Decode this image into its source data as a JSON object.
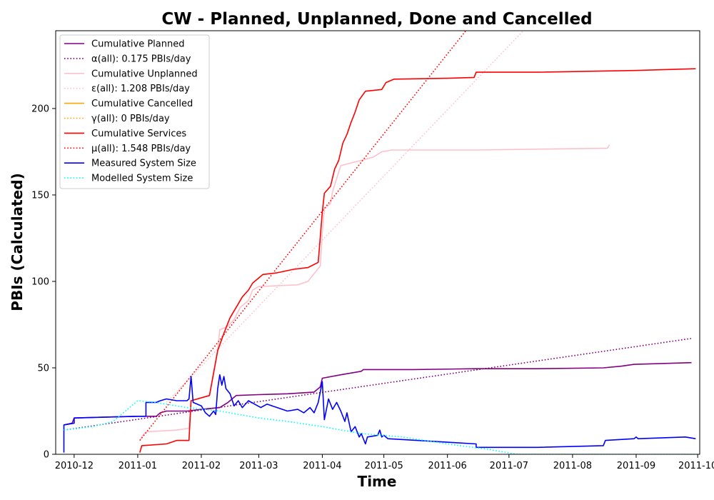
{
  "chart_data": {
    "type": "line",
    "title": "CW - Planned, Unplanned, Done  and Cancelled",
    "xlabel": "Time",
    "ylabel": "PBIs (Calculated)",
    "xlim": [
      "2010-11-22",
      "2011-10-02"
    ],
    "ylim": [
      0,
      245
    ],
    "x_ticks": [
      "2010-12",
      "2011-01",
      "2011-02",
      "2011-03",
      "2011-04",
      "2011-05",
      "2011-06",
      "2011-07",
      "2011-08",
      "2011-09",
      "2011-10"
    ],
    "y_ticks": [
      0,
      50,
      100,
      150,
      200
    ],
    "grid": false,
    "legend_position": "top-left",
    "series": [
      {
        "name": "Cumulative Planned",
        "color": "#800080",
        "style": "solid",
        "points": [
          [
            "2010-11-26",
            17
          ],
          [
            "2010-11-30",
            18
          ],
          [
            "2010-12-01",
            21
          ],
          [
            "2010-12-15",
            21.5
          ],
          [
            "2011-01-01",
            22
          ],
          [
            "2011-01-10",
            22
          ],
          [
            "2011-01-12",
            24
          ],
          [
            "2011-01-15",
            25
          ],
          [
            "2011-01-25",
            25
          ],
          [
            "2011-02-01",
            26
          ],
          [
            "2011-02-10",
            27
          ],
          [
            "2011-02-14",
            30
          ],
          [
            "2011-02-18",
            34
          ],
          [
            "2011-03-01",
            34.5
          ],
          [
            "2011-03-15",
            35
          ],
          [
            "2011-03-28",
            36
          ],
          [
            "2011-03-31",
            39
          ],
          [
            "2011-04-01",
            44
          ],
          [
            "2011-04-10",
            46
          ],
          [
            "2011-04-20",
            48
          ],
          [
            "2011-04-21",
            49
          ],
          [
            "2011-05-15",
            49
          ],
          [
            "2011-06-15",
            49.5
          ],
          [
            "2011-07-15",
            49.5
          ],
          [
            "2011-08-16",
            50
          ],
          [
            "2011-08-25",
            51
          ],
          [
            "2011-08-31",
            52
          ],
          [
            "2011-09-28",
            53
          ]
        ]
      },
      {
        "name": "α(all): 0.175 PBIs/day",
        "color": "#800080",
        "style": "dotted",
        "points": [
          [
            "2010-11-26",
            14
          ],
          [
            "2011-09-28",
            67
          ]
        ]
      },
      {
        "name": "Cumulative Unplanned",
        "color": "#ffc0cb",
        "style": "solid",
        "points": [
          [
            "2011-01-02",
            8
          ],
          [
            "2011-01-03",
            10
          ],
          [
            "2011-01-05",
            13
          ],
          [
            "2011-01-20",
            14
          ],
          [
            "2011-01-26",
            15
          ],
          [
            "2011-01-27",
            31
          ],
          [
            "2011-02-05",
            34
          ],
          [
            "2011-02-09",
            60
          ],
          [
            "2011-02-10",
            72
          ],
          [
            "2011-02-14",
            74
          ],
          [
            "2011-02-17",
            78
          ],
          [
            "2011-02-20",
            85
          ],
          [
            "2011-02-24",
            89
          ],
          [
            "2011-02-26",
            95
          ],
          [
            "2011-03-01",
            97
          ],
          [
            "2011-03-10",
            97.5
          ],
          [
            "2011-03-20",
            98
          ],
          [
            "2011-03-25",
            100
          ],
          [
            "2011-03-31",
            109
          ],
          [
            "2011-04-01",
            128
          ],
          [
            "2011-04-02",
            142
          ],
          [
            "2011-04-05",
            145
          ],
          [
            "2011-04-06",
            152
          ],
          [
            "2011-04-10",
            167
          ],
          [
            "2011-04-20",
            170
          ],
          [
            "2011-04-26",
            172
          ],
          [
            "2011-04-30",
            175
          ],
          [
            "2011-05-05",
            176
          ],
          [
            "2011-06-15",
            176
          ],
          [
            "2011-07-15",
            176.5
          ],
          [
            "2011-08-18",
            177
          ],
          [
            "2011-08-19",
            179
          ]
        ]
      },
      {
        "name": "ε(all): 1.208 PBIs/day",
        "color": "#ffc0cb",
        "style": "dotted",
        "points": [
          [
            "2011-01-15",
            30
          ],
          [
            "2011-07-08",
            245
          ]
        ]
      },
      {
        "name": "Cumulative Cancelled",
        "color": "#ffa500",
        "style": "solid",
        "points": []
      },
      {
        "name": "γ(all): 0 PBIs/day",
        "color": "#ffa500",
        "style": "dotted",
        "points": []
      },
      {
        "name": "Cumulative Services",
        "color": "#ff0000",
        "style": "solid",
        "points": [
          [
            "2011-01-02",
            1
          ],
          [
            "2011-01-03",
            5
          ],
          [
            "2011-01-15",
            6
          ],
          [
            "2011-01-20",
            8
          ],
          [
            "2011-01-26",
            8
          ],
          [
            "2011-01-27",
            31
          ],
          [
            "2011-02-05",
            34
          ],
          [
            "2011-02-09",
            60
          ],
          [
            "2011-02-12",
            70
          ],
          [
            "2011-02-15",
            79
          ],
          [
            "2011-02-18",
            85
          ],
          [
            "2011-02-21",
            91
          ],
          [
            "2011-02-24",
            95
          ],
          [
            "2011-02-26",
            99
          ],
          [
            "2011-03-01",
            102
          ],
          [
            "2011-03-03",
            104
          ],
          [
            "2011-03-10",
            105
          ],
          [
            "2011-03-18",
            107
          ],
          [
            "2011-03-25",
            108
          ],
          [
            "2011-03-30",
            111
          ],
          [
            "2011-04-01",
            140
          ],
          [
            "2011-04-02",
            151
          ],
          [
            "2011-04-05",
            155
          ],
          [
            "2011-04-07",
            165
          ],
          [
            "2011-04-09",
            170
          ],
          [
            "2011-04-11",
            180
          ],
          [
            "2011-04-13",
            185
          ],
          [
            "2011-04-15",
            192
          ],
          [
            "2011-04-17",
            198
          ],
          [
            "2011-04-19",
            205
          ],
          [
            "2011-04-22",
            210
          ],
          [
            "2011-04-30",
            211
          ],
          [
            "2011-05-02",
            215
          ],
          [
            "2011-05-06",
            217
          ],
          [
            "2011-06-01",
            217.5
          ],
          [
            "2011-06-14",
            218
          ],
          [
            "2011-06-15",
            221
          ],
          [
            "2011-07-15",
            221
          ],
          [
            "2011-08-31",
            222
          ],
          [
            "2011-09-30",
            223
          ]
        ]
      },
      {
        "name": "μ(all): 1.548 PBIs/day",
        "color": "#ff0000",
        "style": "dotted",
        "points": [
          [
            "2011-01-02",
            8
          ],
          [
            "2011-06-10",
            245
          ]
        ]
      },
      {
        "name": "Measured System Size",
        "color": "#0000ff",
        "style": "solid",
        "points": [
          [
            "2010-11-26",
            1
          ],
          [
            "2010-11-26",
            17
          ],
          [
            "2010-12-01",
            18
          ],
          [
            "2010-12-01",
            21
          ],
          [
            "2011-01-01",
            22
          ],
          [
            "2011-01-05",
            22
          ],
          [
            "2011-01-05",
            30
          ],
          [
            "2011-01-10",
            30
          ],
          [
            "2011-01-12",
            31
          ],
          [
            "2011-01-15",
            32
          ],
          [
            "2011-01-20",
            31
          ],
          [
            "2011-01-25",
            31
          ],
          [
            "2011-01-26",
            32
          ],
          [
            "2011-01-27",
            45
          ],
          [
            "2011-01-28",
            30
          ],
          [
            "2011-02-01",
            28
          ],
          [
            "2011-02-03",
            24
          ],
          [
            "2011-02-05",
            22
          ],
          [
            "2011-02-07",
            25
          ],
          [
            "2011-02-08",
            23
          ],
          [
            "2011-02-09",
            38
          ],
          [
            "2011-02-10",
            46
          ],
          [
            "2011-02-11",
            40
          ],
          [
            "2011-02-12",
            45
          ],
          [
            "2011-02-13",
            38
          ],
          [
            "2011-02-15",
            35
          ],
          [
            "2011-02-17",
            28
          ],
          [
            "2011-02-19",
            31
          ],
          [
            "2011-02-21",
            27
          ],
          [
            "2011-02-24",
            31
          ],
          [
            "2011-02-27",
            29
          ],
          [
            "2011-03-02",
            27
          ],
          [
            "2011-03-05",
            29
          ],
          [
            "2011-03-10",
            27
          ],
          [
            "2011-03-15",
            25
          ],
          [
            "2011-03-20",
            26
          ],
          [
            "2011-03-23",
            24
          ],
          [
            "2011-03-26",
            27
          ],
          [
            "2011-03-28",
            24
          ],
          [
            "2011-03-30",
            30
          ],
          [
            "2011-04-01",
            42
          ],
          [
            "2011-04-02",
            20
          ],
          [
            "2011-04-04",
            32
          ],
          [
            "2011-04-06",
            26
          ],
          [
            "2011-04-08",
            30
          ],
          [
            "2011-04-10",
            25
          ],
          [
            "2011-04-12",
            19
          ],
          [
            "2011-04-13",
            24
          ],
          [
            "2011-04-15",
            13
          ],
          [
            "2011-04-17",
            16
          ],
          [
            "2011-04-19",
            10
          ],
          [
            "2011-04-20",
            12
          ],
          [
            "2011-04-22",
            6
          ],
          [
            "2011-04-23",
            10
          ],
          [
            "2011-04-28",
            11
          ],
          [
            "2011-04-29",
            14
          ],
          [
            "2011-04-30",
            10
          ],
          [
            "2011-05-01",
            11
          ],
          [
            "2011-05-03",
            9
          ],
          [
            "2011-06-01",
            7
          ],
          [
            "2011-06-15",
            6
          ],
          [
            "2011-06-15",
            4
          ],
          [
            "2011-07-15",
            4
          ],
          [
            "2011-08-16",
            5
          ],
          [
            "2011-08-17",
            8
          ],
          [
            "2011-08-31",
            9
          ],
          [
            "2011-09-01",
            10
          ],
          [
            "2011-09-02",
            9
          ],
          [
            "2011-09-25",
            10
          ],
          [
            "2011-09-30",
            9
          ]
        ]
      },
      {
        "name": "Modelled System Size",
        "color": "#00ffff",
        "style": "dotted",
        "points": [
          [
            "2010-11-26",
            14
          ],
          [
            "2010-12-10",
            16
          ],
          [
            "2010-12-20",
            19
          ],
          [
            "2010-12-27",
            26
          ],
          [
            "2011-01-01",
            31
          ],
          [
            "2011-01-10",
            30
          ],
          [
            "2011-01-25",
            27
          ],
          [
            "2011-02-10",
            25
          ],
          [
            "2011-03-01",
            21
          ],
          [
            "2011-03-15",
            19
          ],
          [
            "2011-04-01",
            16
          ],
          [
            "2011-04-20",
            12
          ],
          [
            "2011-05-10",
            10
          ],
          [
            "2011-06-01",
            6
          ],
          [
            "2011-06-20",
            3
          ],
          [
            "2011-07-05",
            0
          ],
          [
            "2011-09-30",
            0
          ]
        ]
      }
    ]
  }
}
